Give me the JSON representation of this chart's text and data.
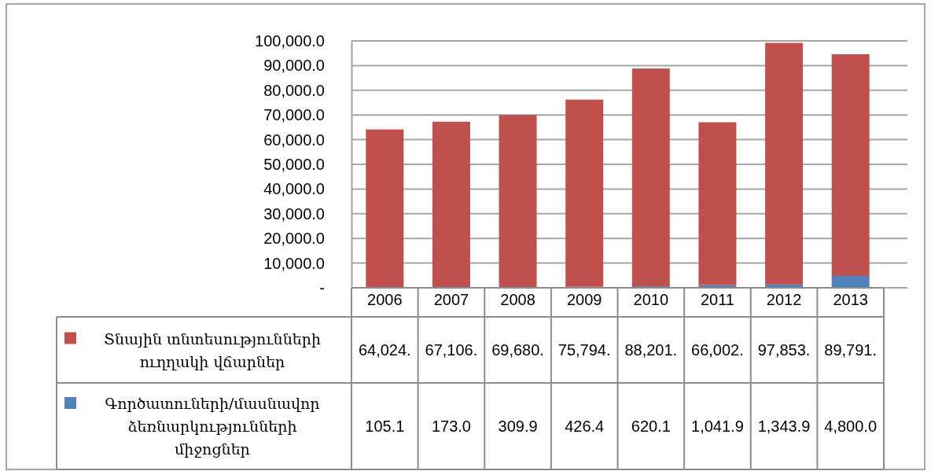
{
  "chart_data": {
    "type": "bar",
    "stacked": true,
    "categories": [
      "2006",
      "2007",
      "2008",
      "2009",
      "2010",
      "2011",
      "2012",
      "2013"
    ],
    "series": [
      {
        "name": "Գործատուների/մասնավոր ձեռնարկությունների միջոցներ",
        "color": "#4f81bd",
        "values": [
          105.1,
          173.0,
          309.9,
          426.4,
          620.1,
          1041.9,
          1343.9,
          4800.0
        ],
        "value_labels": [
          "105.1",
          "173.0",
          "309.9",
          "426.4",
          "620.1",
          "1,041.9",
          "1,343.9",
          "4,800.0"
        ]
      },
      {
        "name": "Տնային տնտեսությունների ուղղակի վճարներ",
        "color": "#c0504d",
        "values": [
          64024,
          67106,
          69680,
          75794,
          88201,
          66002,
          97853,
          89791
        ],
        "value_labels": [
          "64,024.",
          "67,106.",
          "69,680.",
          "75,794.",
          "88,201.",
          "66,002.",
          "97,853.",
          "89,791."
        ]
      }
    ],
    "ylim": [
      0,
      100000
    ],
    "yticks": [
      {
        "value": 0,
        "label": "-"
      },
      {
        "value": 10000,
        "label": "10,000.0"
      },
      {
        "value": 20000,
        "label": "20,000.0"
      },
      {
        "value": 30000,
        "label": "30,000.0"
      },
      {
        "value": 40000,
        "label": "40,000.0"
      },
      {
        "value": 50000,
        "label": "50,000.0"
      },
      {
        "value": 60000,
        "label": "60,000.0"
      },
      {
        "value": 70000,
        "label": "70,000.0"
      },
      {
        "value": 80000,
        "label": "80,000.0"
      },
      {
        "value": 90000,
        "label": "90,000.0"
      },
      {
        "value": 100000,
        "label": "100,000.0"
      }
    ],
    "grid": "y",
    "legend": "bottom"
  }
}
